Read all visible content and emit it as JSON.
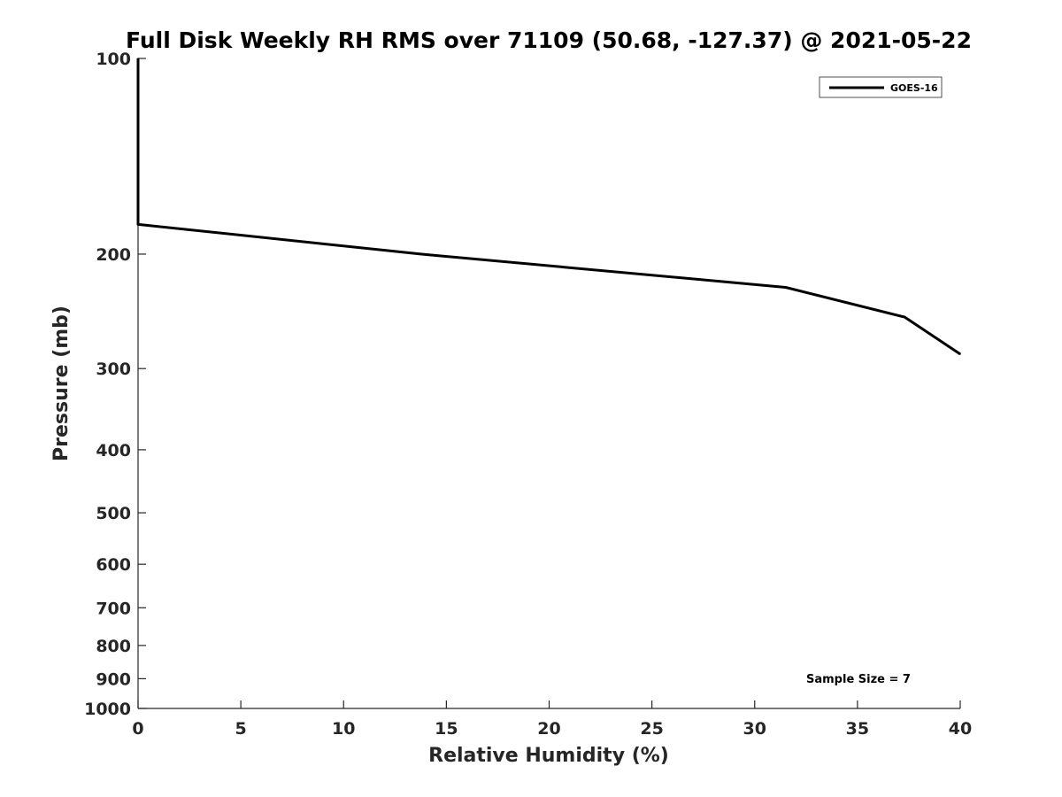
{
  "chart_data": {
    "type": "line",
    "title": "Full Disk Weekly RH RMS over 71109 (50.68, -127.37) @ 2021-05-22",
    "xlabel": "Relative Humidity (%)",
    "ylabel": "Pressure (mb)",
    "xlim": [
      0,
      40
    ],
    "ylim": [
      100,
      1000
    ],
    "y_scale": "log",
    "y_reversed": true,
    "grid": false,
    "legend_position": "top-right",
    "x_ticks": [
      "0",
      "5",
      "10",
      "15",
      "20",
      "25",
      "30",
      "35",
      "40"
    ],
    "y_ticks": [
      "100",
      "200",
      "300",
      "400",
      "500",
      "600",
      "700",
      "800",
      "900",
      "1000"
    ],
    "series": [
      {
        "name": "GOES-16",
        "color": "#000000",
        "points": [
          {
            "x": 0,
            "y": 100
          },
          {
            "x": 0,
            "y": 125
          },
          {
            "x": 0,
            "y": 150
          },
          {
            "x": 0,
            "y": 180
          },
          {
            "x": 13.8,
            "y": 200
          },
          {
            "x": 31.5,
            "y": 225
          },
          {
            "x": 37.3,
            "y": 250
          },
          {
            "x": 40,
            "y": 285
          }
        ]
      }
    ],
    "annotation": "Sample Size = 7"
  }
}
